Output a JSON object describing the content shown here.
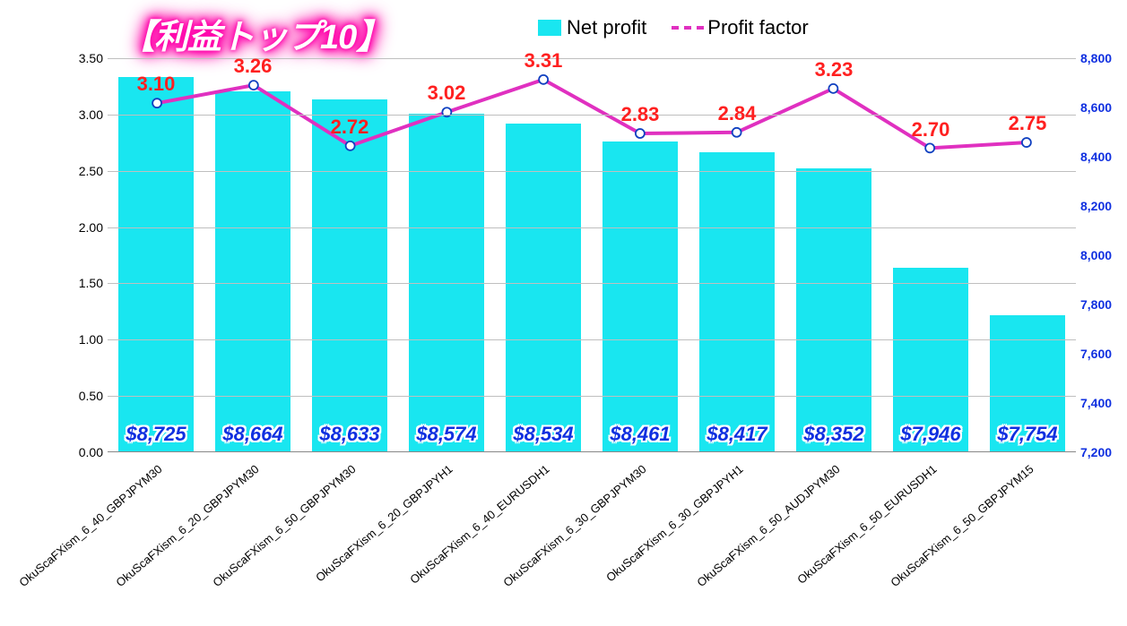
{
  "chart": {
    "type": "combo-bar-line",
    "title": "【利益トップ10】",
    "title_color": "#ffffff",
    "title_glow_color": "#ff00aa",
    "legend": {
      "bar_label": "Net profit",
      "line_label": "Profit factor",
      "text_color": "#000000"
    },
    "colors": {
      "bar_fill": "#19e6f0",
      "line_stroke": "#e030c0",
      "marker_fill": "#ffffff",
      "marker_stroke": "#1040c0",
      "gridline": "#bfbfbf",
      "left_axis_text": "#000000",
      "right_axis_text": "#1030e0",
      "profit_label_text": "#1030e0",
      "pf_label_text": "#ff2020",
      "background": "#ffffff"
    },
    "left_axis": {
      "min": 0.0,
      "max": 3.5,
      "step": 0.5,
      "labels": [
        "0.00",
        "0.50",
        "1.00",
        "1.50",
        "2.00",
        "2.50",
        "3.00",
        "3.50"
      ]
    },
    "right_axis": {
      "min": 7200,
      "max": 8800,
      "step": 200,
      "labels": [
        "7,200",
        "7,400",
        "7,600",
        "7,800",
        "8,000",
        "8,200",
        "8,400",
        "8,600",
        "8,800"
      ]
    },
    "categories": [
      "OkuScaFXism_6_40_GBPJPYM30",
      "OkuScaFXism_6_20_GBPJPYM30",
      "OkuScaFXism_6_50_GBPJPYM30",
      "OkuScaFXism_6_20_GBPJPYH1",
      "OkuScaFXism_6_40_EURUSDH1",
      "OkuScaFXism_6_30_GBPJPYM30",
      "OkuScaFXism_6_30_GBPJPYH1",
      "OkuScaFXism_6_50_AUDJPYM30",
      "OkuScaFXism_6_50_EURUSDH1",
      "OkuScaFXism_6_50_GBPJPYM15"
    ],
    "net_profit_values": [
      8725,
      8664,
      8633,
      8574,
      8534,
      8461,
      8417,
      8352,
      7946,
      7754
    ],
    "net_profit_labels": [
      "$8,725",
      "$8,664",
      "$8,633",
      "$8,574",
      "$8,534",
      "$8,461",
      "$8,417",
      "$8,352",
      "$7,946",
      "$7,754"
    ],
    "profit_factor_values": [
      3.1,
      3.26,
      2.72,
      3.02,
      3.31,
      2.83,
      2.84,
      3.23,
      2.7,
      2.75
    ],
    "profit_factor_labels": [
      "3.10",
      "3.26",
      "2.72",
      "3.02",
      "3.31",
      "2.83",
      "2.84",
      "3.23",
      "2.70",
      "2.75"
    ],
    "line_width": 4,
    "marker_radius": 5
  }
}
